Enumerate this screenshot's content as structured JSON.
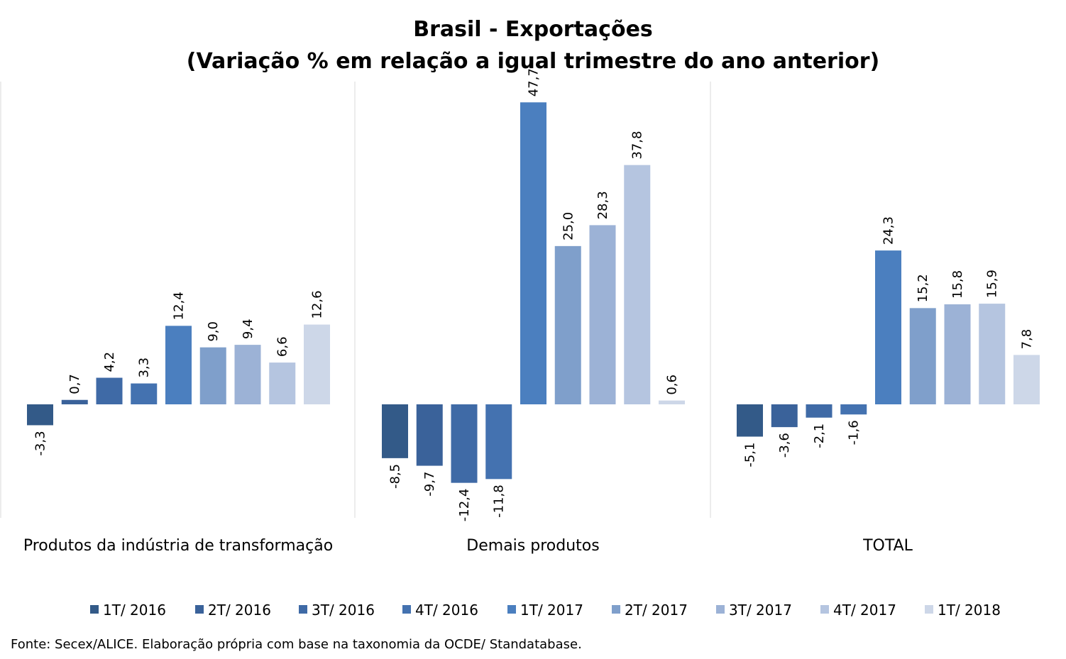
{
  "chart_data": {
    "type": "bar",
    "title": "Brasil - Exportações",
    "subtitle": "(Variação % em relação a igual trimestre do ano anterior)",
    "categories": [
      "Produtos da indústria de transformação",
      "Demais produtos",
      "TOTAL"
    ],
    "series": [
      {
        "name": "1T/ 2016",
        "color": "#335a88",
        "values": [
          -3.3,
          -8.5,
          -5.1
        ],
        "labels": [
          "-3,3",
          "-8,5",
          "-5,1"
        ]
      },
      {
        "name": "2T/ 2016",
        "color": "#3a629a",
        "values": [
          0.7,
          -9.7,
          -3.6
        ],
        "labels": [
          "0,7",
          "-9,7",
          "-3,6"
        ]
      },
      {
        "name": "3T/ 2016",
        "color": "#3f6aa6",
        "values": [
          4.2,
          -12.4,
          -2.1
        ],
        "labels": [
          "4,2",
          "-12,4",
          "-2,1"
        ]
      },
      {
        "name": "4T/ 2016",
        "color": "#4472b0",
        "values": [
          3.3,
          -11.8,
          -1.6
        ],
        "labels": [
          "3,3",
          "-11,8",
          "-1,6"
        ]
      },
      {
        "name": "1T/ 2017",
        "color": "#4b7fbf",
        "values": [
          12.4,
          47.7,
          24.3
        ],
        "labels": [
          "12,4",
          "47,7",
          "24,3"
        ]
      },
      {
        "name": "2T/ 2017",
        "color": "#7f9fcb",
        "values": [
          9.0,
          25.0,
          15.2
        ],
        "labels": [
          "9,0",
          "25,0",
          "15,2"
        ]
      },
      {
        "name": "3T/ 2017",
        "color": "#9cb2d6",
        "values": [
          9.4,
          28.3,
          15.8
        ],
        "labels": [
          "9,4",
          "28,3",
          "15,8"
        ]
      },
      {
        "name": "4T/ 2017",
        "color": "#b5c5e0",
        "values": [
          6.6,
          37.8,
          15.9
        ],
        "labels": [
          "6,6",
          "37,8",
          "15,9"
        ]
      },
      {
        "name": "1T/ 2018",
        "color": "#cdd7e8",
        "values": [
          12.6,
          0.6,
          7.8
        ],
        "labels": [
          "12,6",
          "0,6",
          "7,8"
        ]
      }
    ],
    "legend_position": "bottom",
    "grid": false,
    "source": "Fonte: Secex/ALICE. Elaboração própria com base na taxonomia da OCDE/ Standatabase."
  }
}
